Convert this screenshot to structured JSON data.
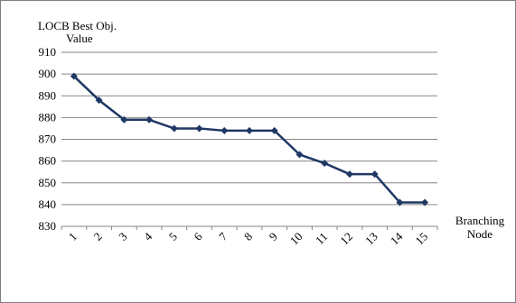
{
  "chart_data": {
    "type": "line",
    "title": "",
    "ylabel_lines": [
      "LOCB Best Obj.",
      "Value"
    ],
    "xlabel_lines": [
      "Branching",
      "Node"
    ],
    "x": [
      "1",
      "2",
      "3",
      "4",
      "5",
      "6",
      "7",
      "8",
      "9",
      "10",
      "11",
      "12",
      "13",
      "14",
      "15"
    ],
    "series": [
      {
        "values": [
          899,
          888,
          879,
          879,
          875,
          875,
          874,
          874,
          874,
          863,
          859,
          854,
          854,
          841,
          841
        ]
      }
    ],
    "ylim": [
      830,
      910
    ],
    "yticks": [
      830,
      840,
      850,
      860,
      870,
      880,
      890,
      900,
      910
    ],
    "grid": true,
    "legend": "none",
    "colors": {
      "series": "#1f3864",
      "grid": "#868686",
      "axis": "#868686"
    },
    "marker": "diamond"
  }
}
